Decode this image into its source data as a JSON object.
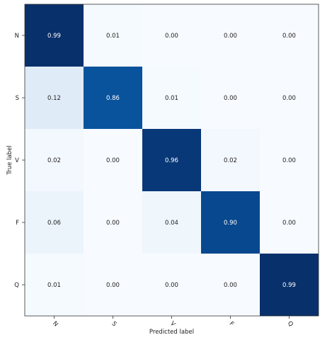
{
  "chart_data": {
    "type": "heatmap",
    "xlabel": "Predicted label",
    "ylabel": "True label",
    "x_categories": [
      "N",
      "S",
      "V",
      "F",
      "Q"
    ],
    "y_categories": [
      "N",
      "S",
      "V",
      "F",
      "Q"
    ],
    "values": [
      [
        0.99,
        0.01,
        0.0,
        0.0,
        0.0
      ],
      [
        0.12,
        0.86,
        0.01,
        0.0,
        0.0
      ],
      [
        0.02,
        0.0,
        0.96,
        0.02,
        0.0
      ],
      [
        0.06,
        0.0,
        0.04,
        0.9,
        0.0
      ],
      [
        0.01,
        0.0,
        0.0,
        0.0,
        0.99
      ]
    ],
    "value_format": "2 decimals",
    "colormap": "Blues",
    "vmin": 0,
    "vmax": 0.99,
    "colors": {
      "low": "#f7fbff",
      "high": "#08306b",
      "text_dark": "#222222",
      "text_light": "#ffffff"
    }
  }
}
